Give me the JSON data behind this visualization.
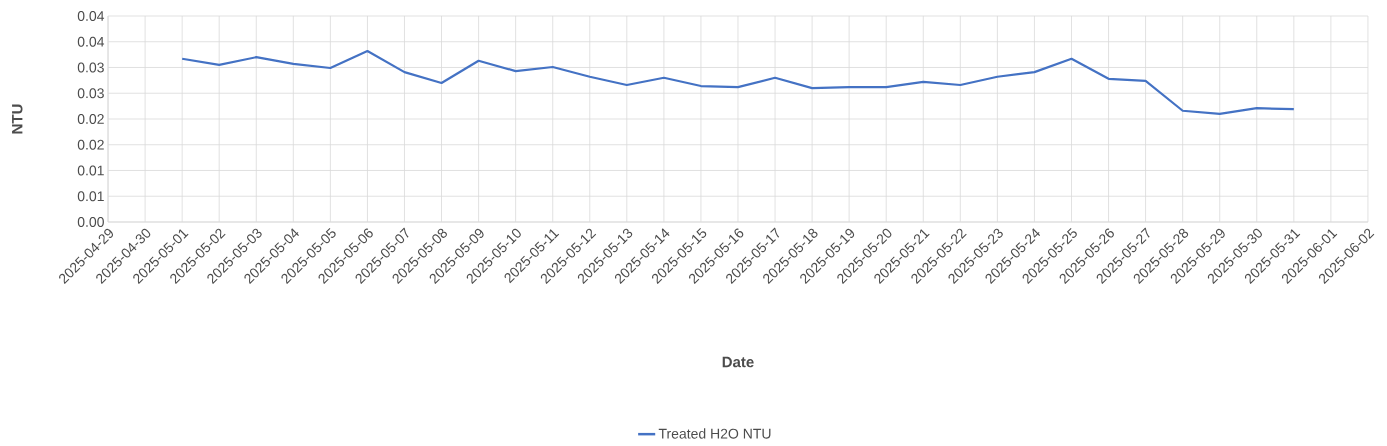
{
  "chart_data": {
    "type": "line",
    "xlabel": "Date",
    "ylabel": "NTU",
    "x": [
      "2025-05-01",
      "2025-05-02",
      "2025-05-03",
      "2025-05-04",
      "2025-05-05",
      "2025-05-06",
      "2025-05-07",
      "2025-05-08",
      "2025-05-09",
      "2025-05-10",
      "2025-05-11",
      "2025-05-12",
      "2025-05-13",
      "2025-05-14",
      "2025-05-15",
      "2025-05-16",
      "2025-05-17",
      "2025-05-18",
      "2025-05-19",
      "2025-05-20",
      "2025-05-21",
      "2025-05-22",
      "2025-05-23",
      "2025-05-24",
      "2025-05-25",
      "2025-05-26",
      "2025-05-27",
      "2025-05-28",
      "2025-05-29",
      "2025-05-30",
      "2025-05-31"
    ],
    "series": [
      {
        "name": "Treated H2O NTU",
        "color": "#4472c4",
        "values": [
          0.0317,
          0.0305,
          0.032,
          0.0307,
          0.0299,
          0.0332,
          0.0291,
          0.027,
          0.0313,
          0.0293,
          0.0301,
          0.0282,
          0.0266,
          0.028,
          0.0264,
          0.0262,
          0.028,
          0.026,
          0.0262,
          0.0262,
          0.0272,
          0.0266,
          0.0282,
          0.0291,
          0.0317,
          0.0278,
          0.0274,
          0.0216,
          0.021,
          0.0221,
          0.0219
        ]
      }
    ],
    "xlim": [
      "2025-04-29",
      "2025-06-02"
    ],
    "xticks": [
      "2025-04-29",
      "2025-04-30",
      "2025-05-01",
      "2025-05-02",
      "2025-05-03",
      "2025-05-04",
      "2025-05-05",
      "2025-05-06",
      "2025-05-07",
      "2025-05-08",
      "2025-05-09",
      "2025-05-10",
      "2025-05-11",
      "2025-05-12",
      "2025-05-13",
      "2025-05-14",
      "2025-05-15",
      "2025-05-16",
      "2025-05-17",
      "2025-05-18",
      "2025-05-19",
      "2025-05-20",
      "2025-05-21",
      "2025-05-22",
      "2025-05-23",
      "2025-05-24",
      "2025-05-25",
      "2025-05-26",
      "2025-05-27",
      "2025-05-28",
      "2025-05-29",
      "2025-05-30",
      "2025-05-31",
      "2025-06-01",
      "2025-06-02"
    ],
    "ylim": [
      0,
      0.04
    ],
    "yticks": [
      {
        "value": 0,
        "label": "0.00"
      },
      {
        "value": 0.005,
        "label": "0.01"
      },
      {
        "value": 0.01,
        "label": "0.01"
      },
      {
        "value": 0.015,
        "label": "0.02"
      },
      {
        "value": 0.02,
        "label": "0.02"
      },
      {
        "value": 0.025,
        "label": "0.03"
      },
      {
        "value": 0.03,
        "label": "0.03"
      },
      {
        "value": 0.035,
        "label": "0.04"
      },
      {
        "value": 0.04,
        "label": "0.04"
      }
    ],
    "grid": true,
    "legend": "bottom",
    "marker": "none",
    "line_style": "solid"
  }
}
